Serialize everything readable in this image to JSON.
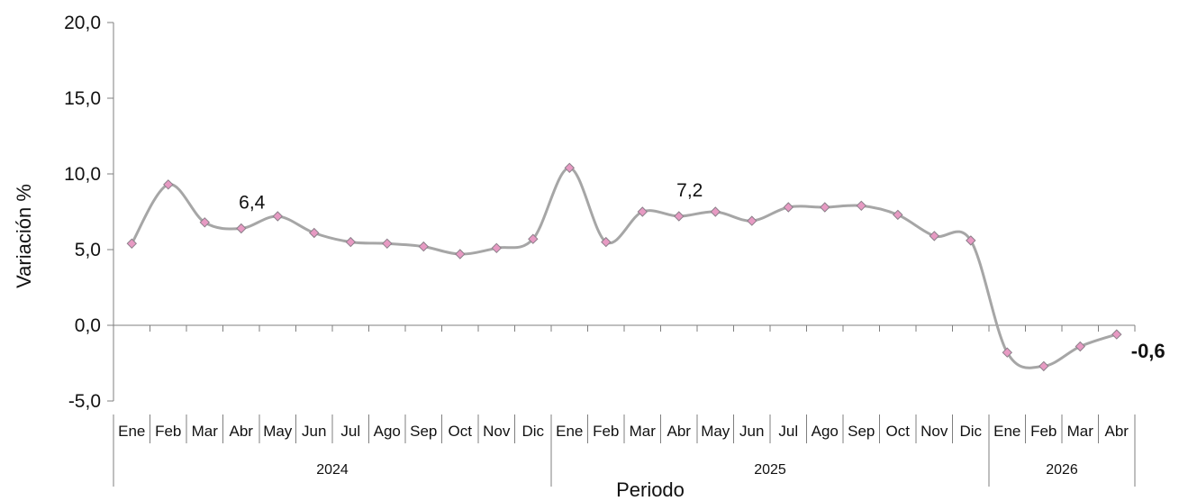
{
  "chart_data": {
    "type": "line",
    "xlabel": "Periodo",
    "ylabel": "Variación %",
    "ylim": [
      -5,
      20
    ],
    "yticks": [
      "20,0",
      "15,0",
      "10,0",
      "5,0",
      "0,0",
      "-5,0"
    ],
    "years": [
      {
        "label": "2024",
        "months": [
          "Ene",
          "Feb",
          "Mar",
          "Abr",
          "May",
          "Jun",
          "Jul",
          "Ago",
          "Sep",
          "Oct",
          "Nov",
          "Dic"
        ]
      },
      {
        "label": "2025",
        "months": [
          "Ene",
          "Feb",
          "Mar",
          "Abr",
          "May",
          "Jun",
          "Jul",
          "Ago",
          "Sep",
          "Oct",
          "Nov",
          "Dic"
        ]
      },
      {
        "label": "2026",
        "months": [
          "Ene",
          "Feb",
          "Mar",
          "Abr"
        ]
      }
    ],
    "values": [
      5.4,
      9.3,
      6.8,
      6.4,
      7.2,
      6.1,
      5.5,
      5.4,
      5.2,
      4.7,
      5.1,
      5.7,
      10.4,
      5.5,
      7.5,
      7.2,
      7.5,
      6.9,
      7.8,
      7.8,
      7.9,
      7.3,
      5.9,
      5.6,
      -1.8,
      -2.7,
      -1.4,
      -0.6
    ],
    "data_labels": [
      {
        "index": 3,
        "text": "6,4",
        "bold": false
      },
      {
        "index": 15,
        "text": "7,2",
        "bold": false
      },
      {
        "index": 27,
        "text": "-0,6",
        "bold": true
      }
    ],
    "line_color": "#a6a6a6",
    "marker_color": "#e79ac3",
    "grid": false,
    "legend": "none"
  }
}
